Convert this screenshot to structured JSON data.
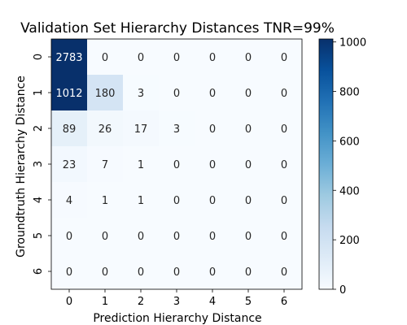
{
  "chart_data": {
    "type": "heatmap",
    "title": "Validation Set Hierarchy Distances TNR=99%",
    "xlabel": "Prediction Hierarchy Distance",
    "ylabel": "Groundtruth Hierarchy Distance",
    "x_categories": [
      "0",
      "1",
      "2",
      "3",
      "4",
      "5",
      "6"
    ],
    "y_categories": [
      "0",
      "1",
      "2",
      "3",
      "4",
      "5",
      "6"
    ],
    "values": [
      [
        2783,
        0,
        0,
        0,
        0,
        0,
        0
      ],
      [
        1012,
        180,
        3,
        0,
        0,
        0,
        0
      ],
      [
        89,
        26,
        17,
        3,
        0,
        0,
        0
      ],
      [
        23,
        7,
        1,
        0,
        0,
        0,
        0
      ],
      [
        4,
        1,
        1,
        0,
        0,
        0,
        0
      ],
      [
        0,
        0,
        0,
        0,
        0,
        0,
        0
      ],
      [
        0,
        0,
        0,
        0,
        0,
        0,
        0
      ]
    ],
    "colormap": "Blues",
    "color_range": [
      0,
      1012
    ],
    "colorbar_ticks": [
      0,
      200,
      400,
      600,
      800,
      1000
    ],
    "grid": false
  }
}
